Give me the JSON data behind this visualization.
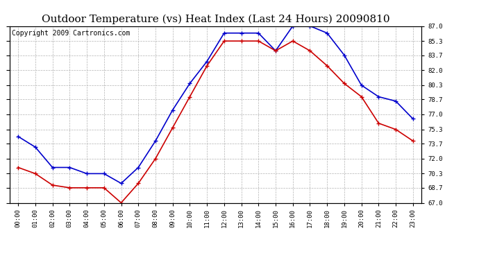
{
  "title": "Outdoor Temperature (vs) Heat Index (Last 24 Hours) 20090810",
  "copyright_text": "Copyright 2009 Cartronics.com",
  "hours": [
    "00:00",
    "01:00",
    "02:00",
    "03:00",
    "04:00",
    "05:00",
    "06:00",
    "07:00",
    "08:00",
    "09:00",
    "10:00",
    "11:00",
    "12:00",
    "13:00",
    "14:00",
    "15:00",
    "16:00",
    "17:00",
    "18:00",
    "19:00",
    "20:00",
    "21:00",
    "22:00",
    "23:00"
  ],
  "temp_blue": [
    74.5,
    73.3,
    71.0,
    71.0,
    70.3,
    70.3,
    69.2,
    71.0,
    74.0,
    77.5,
    80.5,
    83.0,
    86.2,
    86.2,
    86.2,
    84.2,
    87.0,
    87.0,
    86.2,
    83.7,
    80.3,
    79.0,
    78.5,
    76.5
  ],
  "heat_red": [
    71.0,
    70.3,
    69.0,
    68.7,
    68.7,
    68.7,
    67.0,
    69.2,
    72.0,
    75.5,
    79.0,
    82.5,
    85.3,
    85.3,
    85.3,
    84.2,
    85.3,
    84.2,
    82.5,
    80.5,
    79.0,
    76.0,
    75.3,
    74.0
  ],
  "blue_color": "#0000cc",
  "red_color": "#cc0000",
  "bg_color": "#ffffff",
  "grid_color": "#aaaaaa",
  "ylim": [
    67.0,
    87.0
  ],
  "yticks": [
    67.0,
    68.7,
    70.3,
    72.0,
    73.7,
    75.3,
    77.0,
    78.7,
    80.3,
    82.0,
    83.7,
    85.3,
    87.0
  ],
  "title_fontsize": 11,
  "copyright_fontsize": 7,
  "marker": "+"
}
